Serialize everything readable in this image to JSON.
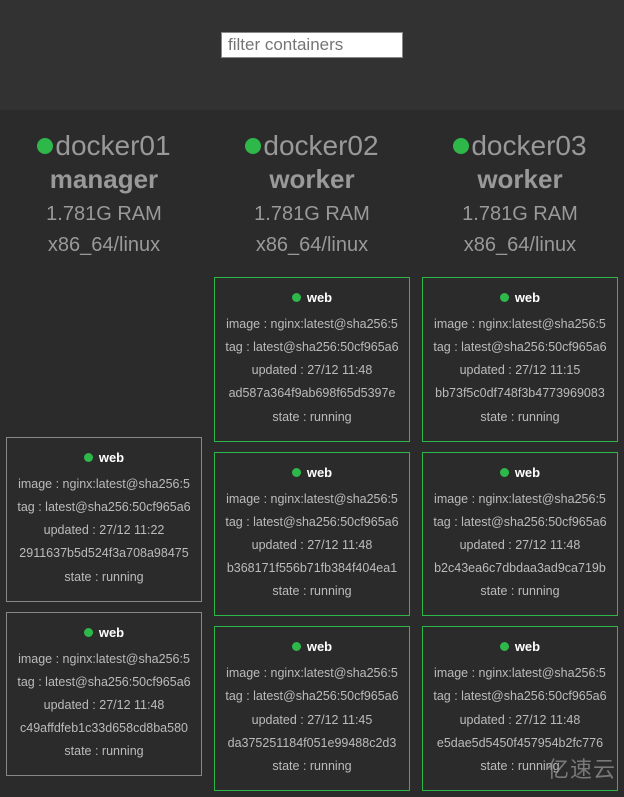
{
  "colors": {
    "status_green": "#2fb84a",
    "card_border_gray": "#888888",
    "card_border_green": "#2fb84a",
    "page_bg": "#2b2b2b",
    "band_bg": "#323232"
  },
  "filter": {
    "placeholder": "filter containers",
    "value": ""
  },
  "watermark": "亿速云",
  "nodes": [
    {
      "name": "docker01",
      "role": "manager",
      "ram": "1.781G RAM",
      "arch": "x86_64/linux",
      "status_color": "#2fb84a",
      "spacer_before_cards": true,
      "cards": [
        {
          "border": "gray",
          "dot_color": "#2fb84a",
          "title": "web",
          "image": "image : nginx:latest@sha256:5",
          "tag": "tag : latest@sha256:50cf965a6",
          "updated": "updated : 27/12 11:22",
          "id": "2911637b5d524f3a708a98475",
          "state": "state : running"
        },
        {
          "border": "gray",
          "dot_color": "#2fb84a",
          "title": "web",
          "image": "image : nginx:latest@sha256:5",
          "tag": "tag : latest@sha256:50cf965a6",
          "updated": "updated : 27/12 11:48",
          "id": "c49affdfeb1c33d658cd8ba580",
          "state": "state : running"
        }
      ]
    },
    {
      "name": "docker02",
      "role": "worker",
      "ram": "1.781G RAM",
      "arch": "x86_64/linux",
      "status_color": "#2fb84a",
      "spacer_before_cards": false,
      "cards": [
        {
          "border": "green",
          "dot_color": "#2fb84a",
          "title": "web",
          "image": "image : nginx:latest@sha256:5",
          "tag": "tag : latest@sha256:50cf965a6",
          "updated": "updated : 27/12 11:48",
          "id": "ad587a364f9ab698f65d5397e",
          "state": "state : running"
        },
        {
          "border": "green",
          "dot_color": "#2fb84a",
          "title": "web",
          "image": "image : nginx:latest@sha256:5",
          "tag": "tag : latest@sha256:50cf965a6",
          "updated": "updated : 27/12 11:48",
          "id": "b368171f556b71fb384f404ea1",
          "state": "state : running"
        },
        {
          "border": "green",
          "dot_color": "#2fb84a",
          "title": "web",
          "image": "image : nginx:latest@sha256:5",
          "tag": "tag : latest@sha256:50cf965a6",
          "updated": "updated : 27/12 11:45",
          "id": "da375251184f051e99488c2d3",
          "state": "state : running"
        }
      ]
    },
    {
      "name": "docker03",
      "role": "worker",
      "ram": "1.781G RAM",
      "arch": "x86_64/linux",
      "status_color": "#2fb84a",
      "spacer_before_cards": false,
      "cards": [
        {
          "border": "green",
          "dot_color": "#2fb84a",
          "title": "web",
          "image": "image : nginx:latest@sha256:5",
          "tag": "tag : latest@sha256:50cf965a6",
          "updated": "updated : 27/12 11:15",
          "id": "bb73f5c0df748f3b4773969083",
          "state": "state : running"
        },
        {
          "border": "green",
          "dot_color": "#2fb84a",
          "title": "web",
          "image": "image : nginx:latest@sha256:5",
          "tag": "tag : latest@sha256:50cf965a6",
          "updated": "updated : 27/12 11:48",
          "id": "b2c43ea6c7dbdaa3ad9ca719b",
          "state": "state : running"
        },
        {
          "border": "green",
          "dot_color": "#2fb84a",
          "title": "web",
          "image": "image : nginx:latest@sha256:5",
          "tag": "tag : latest@sha256:50cf965a6",
          "updated": "updated : 27/12 11:48",
          "id": "e5dae5d5450f457954b2fc776",
          "state": "state : running"
        }
      ]
    }
  ]
}
